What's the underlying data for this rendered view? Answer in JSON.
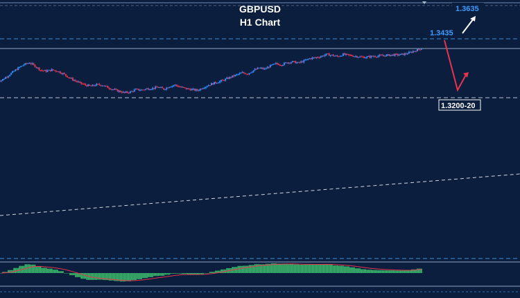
{
  "chart": {
    "symbol": "GBPUSD",
    "timeframe": "H1 Chart"
  },
  "levels": {
    "resistance_label": "1.3435",
    "target_label": "1.3635",
    "support_label": "1.3200-20"
  },
  "colors": {
    "background": "#0b1e3d",
    "bull_candle": "#2f8cff",
    "bear_candle": "#e8344e",
    "level_line": "#3d8fe0",
    "macd_hist": "#3fc26e",
    "down_arrow": "#e8344e",
    "up_arrow": "#ffffff"
  },
  "chart_data": {
    "type": "line",
    "title": "GBPUSD H1 Chart",
    "x_unit": "hourly bars",
    "series": [
      {
        "values": [
          1.3285,
          1.3305,
          1.3325,
          1.3345,
          1.3362,
          1.3372,
          1.3355,
          1.3335,
          1.333,
          1.3336,
          1.333,
          1.3318,
          1.33,
          1.3285,
          1.3272,
          1.3262,
          1.3256,
          1.3264,
          1.3262,
          1.325,
          1.324,
          1.3232,
          1.3224,
          1.3228,
          1.324,
          1.3238,
          1.3244,
          1.3246,
          1.3252,
          1.3242,
          1.3256,
          1.3262,
          1.3252,
          1.3244,
          1.324,
          1.3236,
          1.325,
          1.3262,
          1.3272,
          1.328,
          1.329,
          1.3302,
          1.3312,
          1.3322,
          1.3318,
          1.3334,
          1.3346,
          1.334,
          1.3356,
          1.3366,
          1.3362,
          1.3372,
          1.3376,
          1.337,
          1.338,
          1.3392,
          1.3396,
          1.3402,
          1.3412,
          1.3408,
          1.3402,
          1.3412,
          1.3408,
          1.3404,
          1.34,
          1.3398,
          1.3402,
          1.3404,
          1.3406,
          1.3408,
          1.341,
          1.341,
          1.3414,
          1.3422,
          1.3432,
          1.3441
        ]
      }
    ],
    "levels": [
      1.3435,
      1.32,
      1.3635
    ]
  }
}
